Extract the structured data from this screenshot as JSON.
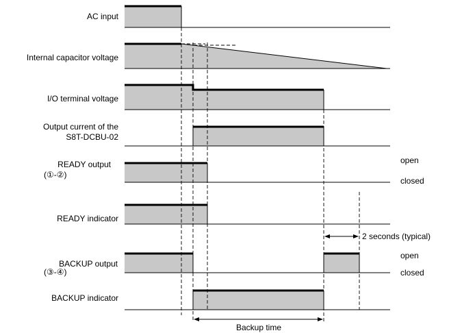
{
  "signals": {
    "ac_input": "AC input",
    "capacitor_voltage": "Internal capacitor voltage",
    "io_terminal_voltage": "I/O terminal voltage",
    "output_current_line1": "Output current of the",
    "output_current_line2": "S8T-DCBU-02",
    "ready_output_line1": "READY output",
    "ready_output_line2": "(①-②)",
    "ready_indicator": "READY indicator",
    "backup_output_line1": "BACKUP output",
    "backup_output_line2": "(③-④)",
    "backup_indicator": "BACKUP indicator"
  },
  "states": {
    "ready_open": "open",
    "ready_closed": "closed",
    "backup_open": "open",
    "backup_closed": "closed"
  },
  "annotations": {
    "two_seconds": "2 seconds (typical)",
    "backup_time": "Backup time"
  }
}
